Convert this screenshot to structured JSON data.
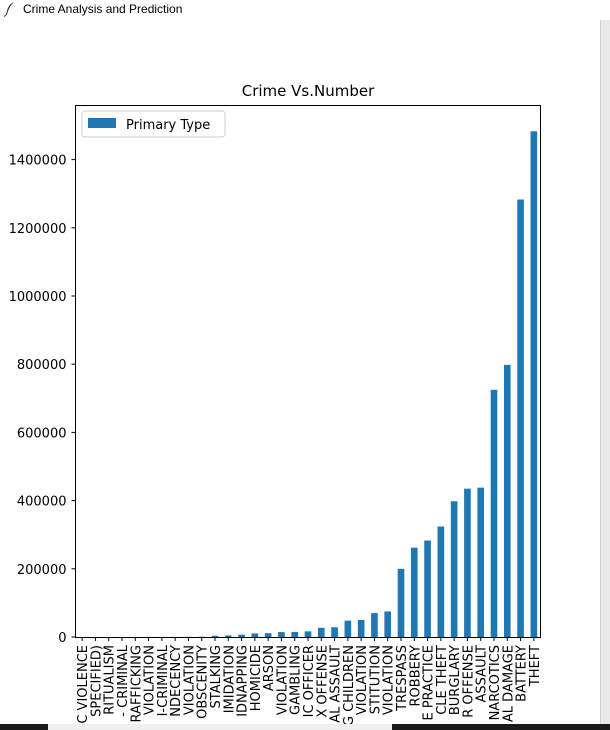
{
  "window": {
    "title": "Crime Analysis and Prediction",
    "icon": "feather-icon"
  },
  "chart_data": {
    "type": "bar",
    "title": "Crime Vs.Number",
    "xlabel": "",
    "ylabel": "",
    "ylim": [
      0,
      1550000
    ],
    "yticks": [
      0,
      200000,
      400000,
      600000,
      800000,
      1000000,
      1200000,
      1400000
    ],
    "legend": {
      "position": "top-left",
      "entries": [
        "Primary Type"
      ]
    },
    "bar_color": "#1f77b4",
    "grid": false,
    "categories": [
      "DOMESTIC VIOLENCE",
      "OTHER OFFENSE (NOT SPECIFIED)",
      "RITUALISM",
      "NON - CRIMINAL",
      "HUMAN TRAFFICKING",
      "CONCEALED CARRY LICENSE VIOLATION",
      "NON-CRIMINAL",
      "PUBLIC INDECENCY",
      "OTHER NARCOTIC VIOLATION",
      "OBSCENITY",
      "STALKING",
      "INTIMIDATION",
      "KIDNAPPING",
      "HOMICIDE",
      "ARSON",
      "LIQUOR LAW VIOLATION",
      "GAMBLING",
      "INTERFERENCE WITH PUBLIC OFFICER",
      "SEX OFFENSE",
      "CRIMINAL SEXUAL ASSAULT",
      "OFFENSE INVOLVING CHILDREN",
      "PUBLIC PEACE VIOLATION",
      "PROSTITUTION",
      "WEAPONS VIOLATION",
      "CRIMINAL TRESPASS",
      "ROBBERY",
      "DECEPTIVE PRACTICE",
      "MOTOR VEHICLE THEFT",
      "BURGLARY",
      "OTHER OFFENSE",
      "ASSAULT",
      "NARCOTICS",
      "CRIMINAL DAMAGE",
      "BATTERY",
      "THEFT"
    ],
    "tick_labels_visible": [
      "C VIOLENCE",
      "SPECIFIED)",
      "RITUALISM",
      "- CRIMINAL",
      "RAFFICKING",
      "VIOLATION",
      "I-CRIMINAL",
      "NDECENCY",
      "VIOLATION",
      "OBSCENITY",
      "STALKING",
      "IMIDATION",
      "IDNAPPING",
      "HOMICIDE",
      "ARSON",
      "VIOLATION",
      "GAMBLING",
      "IC OFFICER",
      "X OFFENSE",
      "AL ASSAULT",
      "G CHILDREN",
      "VIOLATION",
      "STITUTION",
      "VIOLATION",
      "TRESPASS",
      "ROBBERY",
      "E PRACTICE",
      "CLE THEFT",
      "BURGLARY",
      "R OFFENSE",
      "ASSAULT",
      "NARCOTICS",
      "AL DAMAGE",
      "BATTERY",
      "THEFT"
    ],
    "series": [
      {
        "name": "Primary Type",
        "values": [
          1,
          3,
          15,
          38,
          60,
          120,
          170,
          200,
          650,
          700,
          3600,
          4500,
          6800,
          10500,
          11200,
          14500,
          14800,
          16500,
          27000,
          28500,
          48000,
          50000,
          70000,
          75000,
          200000,
          262000,
          283000,
          324000,
          398000,
          435000,
          438000,
          725000,
          798000,
          1283000,
          1483000
        ]
      }
    ]
  }
}
